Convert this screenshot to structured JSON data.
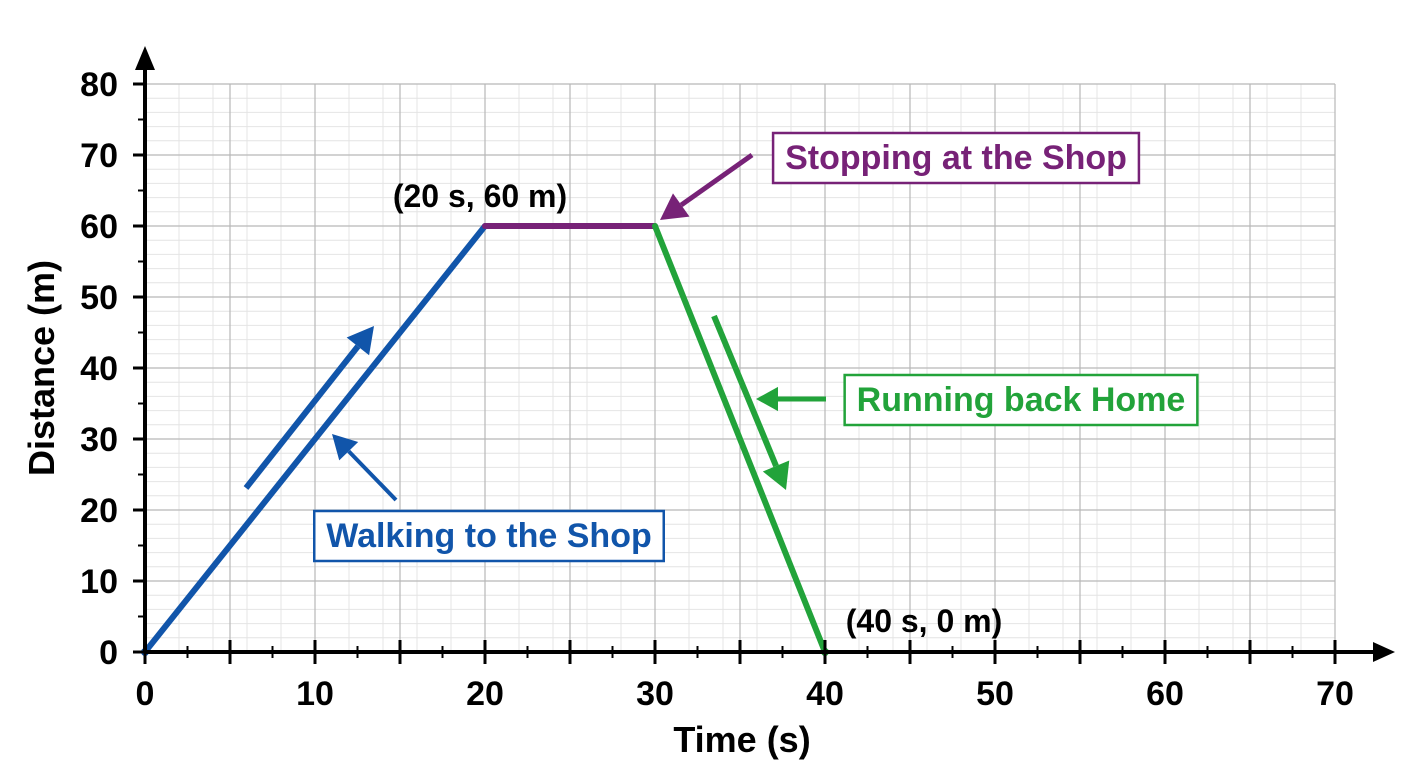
{
  "chart_data": {
    "type": "line",
    "xlabel": "Time (s)",
    "ylabel": "Distance (m)",
    "xlim": [
      0,
      70
    ],
    "ylim": [
      0,
      80
    ],
    "x_ticks": [
      0,
      10,
      20,
      30,
      40,
      50,
      60,
      70
    ],
    "y_ticks": [
      0,
      10,
      20,
      30,
      40,
      50,
      60,
      70,
      80
    ],
    "grid": true,
    "segments": [
      {
        "label": "Walking to the Shop",
        "color": "#1155aa",
        "points": [
          [
            0,
            0
          ],
          [
            20,
            60
          ]
        ]
      },
      {
        "label": "Stopping at the  Shop",
        "color": "#772277",
        "points": [
          [
            20,
            60
          ],
          [
            30,
            60
          ]
        ]
      },
      {
        "label": "Running back Home",
        "color": "#22a33a",
        "points": [
          [
            30,
            60
          ],
          [
            40,
            0
          ]
        ]
      }
    ],
    "point_labels": [
      {
        "text": "(20 s, 60 m)",
        "x": 20,
        "y": 60
      },
      {
        "text": "(40 s, 0 m)",
        "x": 40,
        "y": 0
      }
    ]
  }
}
